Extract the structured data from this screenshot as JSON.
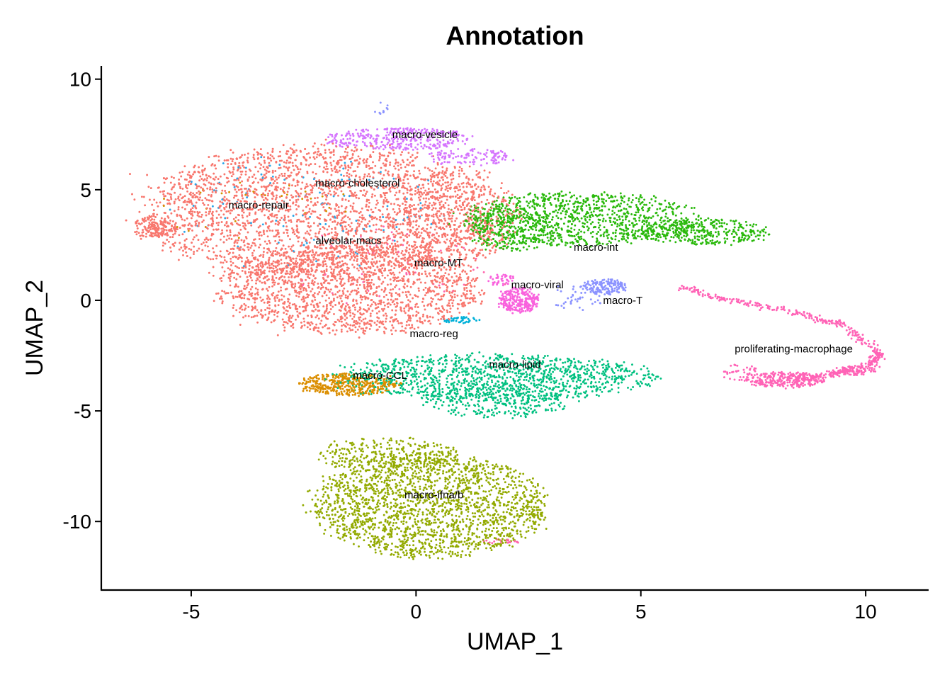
{
  "chart_data": {
    "type": "scatter",
    "title": "Annotation",
    "xlabel": "UMAP_1",
    "ylabel": "UMAP_2",
    "xlim": [
      -7.0,
      11.4
    ],
    "ylim": [
      -13.1,
      10.6
    ],
    "xticks": [
      -5,
      0,
      5,
      10
    ],
    "yticks": [
      10,
      5,
      0,
      -5,
      -10
    ],
    "xtick_labels": [
      "-5",
      "0",
      "5",
      "10"
    ],
    "ytick_labels": [
      "10",
      "5",
      "0",
      "-5",
      "-10"
    ],
    "grid": false,
    "legend": "none",
    "clusters": [
      {
        "name": "alveolar-macs",
        "color": "#F8766D",
        "label_x": -1.5,
        "label_y": 2.7,
        "blobs": [
          {
            "cx": -2.2,
            "cy": 4.0,
            "rx": 3.9,
            "ry": 3.0,
            "n": 2600
          },
          {
            "cx": -1.5,
            "cy": 0.5,
            "rx": 2.9,
            "ry": 2.0,
            "n": 1700
          },
          {
            "cx": -5.8,
            "cy": 3.3,
            "rx": 0.5,
            "ry": 0.5,
            "n": 140
          },
          {
            "cx": 0.8,
            "cy": 3.8,
            "rx": 1.5,
            "ry": 2.2,
            "n": 500
          }
        ]
      },
      {
        "name": "macro-repair",
        "color": "#D39200",
        "label_x": -3.5,
        "label_y": 4.3,
        "blobs": [
          {
            "cx": -3.6,
            "cy": 4.2,
            "rx": 2.2,
            "ry": 1.5,
            "n": 30
          }
        ]
      },
      {
        "name": "macro-CCL",
        "color": "#DB8E00",
        "label_x": -0.8,
        "label_y": -3.4,
        "blobs": [
          {
            "cx": -1.5,
            "cy": -3.8,
            "rx": 1.1,
            "ry": 0.5,
            "n": 420
          }
        ]
      },
      {
        "name": "macro-ifna/b",
        "color": "#93AA00",
        "label_x": 0.4,
        "label_y": -8.8,
        "blobs": [
          {
            "cx": 0.3,
            "cy": -9.3,
            "rx": 2.6,
            "ry": 2.3,
            "n": 2000
          },
          {
            "cx": -0.6,
            "cy": -7.0,
            "rx": 1.6,
            "ry": 0.8,
            "n": 300
          }
        ]
      },
      {
        "name": "macro-int",
        "color": "#2AB90C",
        "label_x": 4.0,
        "label_y": 2.4,
        "blobs": [
          {
            "cx": 3.6,
            "cy": 3.7,
            "rx": 2.6,
            "ry": 1.2,
            "n": 1000
          },
          {
            "cx": 6.4,
            "cy": 3.1,
            "rx": 1.4,
            "ry": 0.6,
            "n": 350
          },
          {
            "cx": 2.1,
            "cy": 3.2,
            "rx": 0.9,
            "ry": 1.0,
            "n": 250
          }
        ]
      },
      {
        "name": "macro-lipid",
        "color": "#00C080",
        "label_x": 2.2,
        "label_y": -2.9,
        "blobs": [
          {
            "cx": 1.8,
            "cy": -3.5,
            "rx": 3.5,
            "ry": 1.05,
            "n": 1200
          },
          {
            "cx": 1.8,
            "cy": -4.5,
            "rx": 1.6,
            "ry": 0.8,
            "n": 300
          }
        ]
      },
      {
        "name": "macro-reg",
        "color": "#00B0D8",
        "label_x": 0.4,
        "label_y": -1.5,
        "blobs": [
          {
            "cx": 1.0,
            "cy": -0.9,
            "rx": 0.4,
            "ry": 0.15,
            "n": 40
          }
        ]
      },
      {
        "name": "macro-cholesterol",
        "color": "#2AA5E8",
        "label_x": -1.3,
        "label_y": 5.3,
        "blobs": [
          {
            "cx": -2.5,
            "cy": 4.0,
            "rx": 3.2,
            "ry": 2.6,
            "n": 110
          }
        ]
      },
      {
        "name": "macro-T",
        "color": "#8B93FF",
        "label_x": 4.6,
        "label_y": 0.0,
        "blobs": [
          {
            "cx": 4.2,
            "cy": 0.6,
            "rx": 0.5,
            "ry": 0.35,
            "n": 160
          },
          {
            "cx": 3.6,
            "cy": 0.1,
            "rx": 0.6,
            "ry": 0.6,
            "n": 40
          },
          {
            "cx": -0.8,
            "cy": 8.7,
            "rx": 0.2,
            "ry": 0.3,
            "n": 10
          }
        ]
      },
      {
        "name": "macro-vesicle",
        "color": "#D575FE",
        "label_x": 0.2,
        "label_y": 7.5,
        "blobs": [
          {
            "cx": -0.4,
            "cy": 7.3,
            "rx": 1.6,
            "ry": 0.5,
            "n": 350
          },
          {
            "cx": 1.2,
            "cy": 6.5,
            "rx": 0.9,
            "ry": 0.4,
            "n": 120
          }
        ]
      },
      {
        "name": "macro-viral",
        "color": "#F962DD",
        "label_x": 2.7,
        "label_y": 0.7,
        "blobs": [
          {
            "cx": 2.3,
            "cy": 0.0,
            "rx": 0.45,
            "ry": 0.55,
            "n": 260
          },
          {
            "cx": 1.9,
            "cy": 0.9,
            "rx": 0.3,
            "ry": 0.3,
            "n": 40
          }
        ]
      },
      {
        "name": "macro-MT",
        "color": "#FF65AC",
        "label_x": 0.5,
        "label_y": 1.7,
        "blobs": [
          {
            "cx": -0.5,
            "cy": 1.5,
            "rx": 2.4,
            "ry": 1.9,
            "n": 60
          },
          {
            "cx": 1.9,
            "cy": -10.9,
            "rx": 0.4,
            "ry": 0.1,
            "n": 25
          }
        ]
      },
      {
        "name": "proliferating-macrophage",
        "color": "#FF63B6",
        "label_x": 8.4,
        "label_y": -2.2,
        "blobs": [
          {
            "cx": 8.2,
            "cy": -3.6,
            "rx": 0.9,
            "ry": 0.35,
            "n": 280
          },
          {
            "cx": 9.7,
            "cy": -3.2,
            "rx": 0.6,
            "ry": 0.2,
            "n": 80
          },
          {
            "cx": 7.2,
            "cy": -3.3,
            "rx": 0.4,
            "ry": 0.5,
            "n": 40
          }
        ],
        "arc": [
          [
            5.9,
            0.6
          ],
          [
            7.0,
            0.0
          ],
          [
            8.3,
            -0.5
          ],
          [
            9.5,
            -1.1
          ],
          [
            10.3,
            -2.4
          ],
          [
            10.1,
            -2.9
          ],
          [
            9.2,
            -3.4
          ],
          [
            8.3,
            -3.6
          ]
        ],
        "arc_n": 450
      }
    ]
  }
}
